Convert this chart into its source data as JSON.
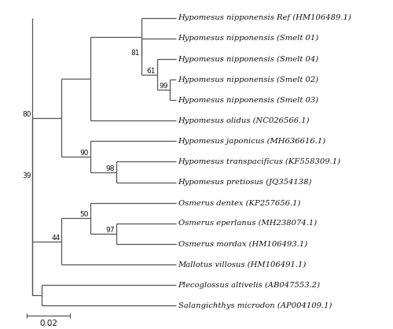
{
  "taxa": [
    "Hypomesus nipponensis Ref (HM106489.1)",
    "Hypomesus nipponensis (Smelt 01)",
    "Hypomesus nipponensis (Smelt 04)",
    "Hypomesus nipponensis (Smelt 02)",
    "Hypomesus nipponensis (Smelt 03)",
    "Hypomesus olidus (NC026566.1)",
    "Hypomesus japonicus (MH636616.1)",
    "Hypomesus transpacificus (KF558309.1)",
    "Hypomesus pretiosus (JQ354138)",
    "Osmerus dentex (KP257656.1)",
    "Osmerus eperlanus (MH238074.1)",
    "Osmerus mordax (HM106493.1)",
    "Mallotus villosus (HM106491.1)",
    "Plecoglossus altivelis (AB047553.2)",
    "Salangichthys microdon (AP004109.1)"
  ],
  "line_color": "#555555",
  "text_color": "#111111",
  "bg_color": "#ffffff",
  "scale_bar_label": "0.02",
  "font_size": 7.2,
  "bootstrap_font_size": 6.5
}
